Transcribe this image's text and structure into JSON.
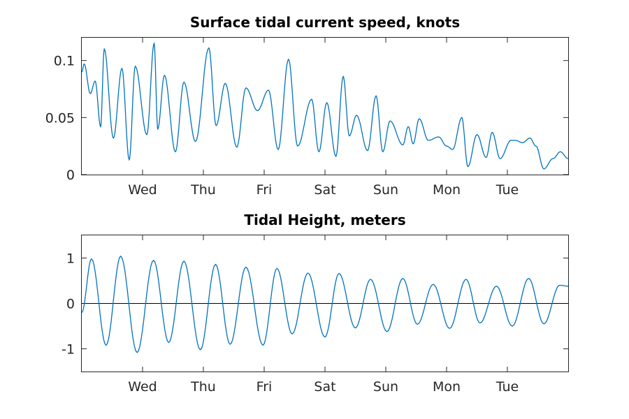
{
  "chart_data": [
    {
      "type": "line",
      "title": "Surface tidal current speed, knots",
      "xlabel": "",
      "ylabel": "",
      "x_unit": "days",
      "xlim": [
        0,
        8
      ],
      "ylim": [
        0,
        0.12
      ],
      "grid": false,
      "x_ticks": [
        {
          "value": 1,
          "label": "Wed"
        },
        {
          "value": 2,
          "label": "Thu"
        },
        {
          "value": 3,
          "label": "Fri"
        },
        {
          "value": 4,
          "label": "Sat"
        },
        {
          "value": 5,
          "label": "Sun"
        },
        {
          "value": 6,
          "label": "Mon"
        },
        {
          "value": 7,
          "label": "Tue"
        }
      ],
      "y_ticks": [
        {
          "value": 0,
          "label": "0"
        },
        {
          "value": 0.05,
          "label": "0.05"
        },
        {
          "value": 0.1,
          "label": "0.1"
        }
      ],
      "series": [
        {
          "color": "#0072bd",
          "x": [
            0,
            0.04,
            0.14,
            0.22,
            0.31,
            0.37,
            0.52,
            0.66,
            0.78,
            0.88,
            1.07,
            1.19,
            1.25,
            1.36,
            1.54,
            1.68,
            1.87,
            2.09,
            2.21,
            2.36,
            2.55,
            2.7,
            2.89,
            3.07,
            3.23,
            3.4,
            3.55,
            3.78,
            3.9,
            4.03,
            4.18,
            4.3,
            4.4,
            4.52,
            4.7,
            4.84,
            4.95,
            5.07,
            5.28,
            5.37,
            5.45,
            5.55,
            5.7,
            5.87,
            6.0,
            6.1,
            6.25,
            6.35,
            6.5,
            6.65,
            6.75,
            6.88,
            7.06,
            7.13,
            7.25,
            7.37,
            7.47,
            7.6,
            7.75,
            7.87,
            8.0
          ],
          "y": [
            0.09,
            0.097,
            0.071,
            0.082,
            0.042,
            0.11,
            0.032,
            0.093,
            0.013,
            0.095,
            0.035,
            0.115,
            0.04,
            0.087,
            0.02,
            0.081,
            0.029,
            0.111,
            0.043,
            0.08,
            0.024,
            0.076,
            0.056,
            0.074,
            0.022,
            0.101,
            0.025,
            0.066,
            0.02,
            0.063,
            0.016,
            0.086,
            0.034,
            0.052,
            0.021,
            0.069,
            0.02,
            0.047,
            0.026,
            0.042,
            0.027,
            0.049,
            0.03,
            0.033,
            0.025,
            0.022,
            0.05,
            0.007,
            0.035,
            0.015,
            0.037,
            0.014,
            0.03,
            0.03,
            0.028,
            0.032,
            0.025,
            0.005,
            0.014,
            0.02,
            0.014
          ]
        }
      ]
    },
    {
      "type": "line",
      "title": "Tidal Height, meters",
      "xlabel": "",
      "ylabel": "",
      "x_unit": "days",
      "xlim": [
        0,
        8
      ],
      "ylim": [
        -1.5,
        1.5
      ],
      "grid": false,
      "zero_line": true,
      "x_ticks": [
        {
          "value": 1,
          "label": "Wed"
        },
        {
          "value": 2,
          "label": "Thu"
        },
        {
          "value": 3,
          "label": "Fri"
        },
        {
          "value": 4,
          "label": "Sat"
        },
        {
          "value": 5,
          "label": "Sun"
        },
        {
          "value": 6,
          "label": "Mon"
        },
        {
          "value": 7,
          "label": "Tue"
        }
      ],
      "y_ticks": [
        {
          "value": -1,
          "label": "-1"
        },
        {
          "value": 0,
          "label": "0"
        },
        {
          "value": 1,
          "label": "1"
        }
      ],
      "series": [
        {
          "color": "#0072bd",
          "x": [
            0,
            0.16,
            0.4,
            0.64,
            0.91,
            1.18,
            1.43,
            1.68,
            1.95,
            2.2,
            2.44,
            2.7,
            2.98,
            3.21,
            3.46,
            3.72,
            4.0,
            4.23,
            4.5,
            4.75,
            5.02,
            5.28,
            5.52,
            5.78,
            6.05,
            6.32,
            6.55,
            6.82,
            7.08,
            7.35,
            7.6,
            7.86,
            8.0
          ],
          "y": [
            -0.2,
            0.98,
            -0.92,
            1.04,
            -1.08,
            0.95,
            -0.86,
            0.93,
            -1.02,
            0.86,
            -0.9,
            0.8,
            -0.92,
            0.77,
            -0.67,
            0.67,
            -0.74,
            0.66,
            -0.54,
            0.53,
            -0.62,
            0.55,
            -0.46,
            0.42,
            -0.55,
            0.53,
            -0.43,
            0.38,
            -0.5,
            0.55,
            -0.45,
            0.4,
            0.38
          ]
        }
      ]
    }
  ]
}
